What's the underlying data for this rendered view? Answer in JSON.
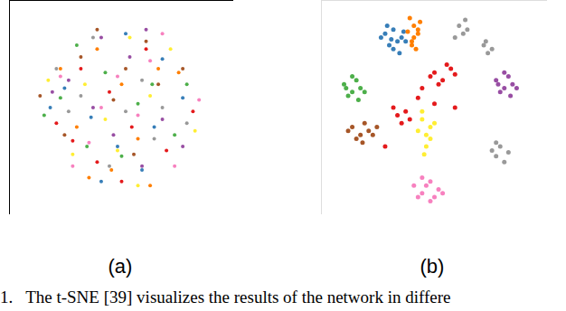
{
  "chart_data": [
    {
      "type": "scatter",
      "title": "(a)",
      "marker": "circle",
      "tick_labels": false,
      "xlim": [
        -5,
        105
      ],
      "ylim": [
        -5,
        105
      ],
      "series": [
        {
          "color": "#e41a1c",
          "x": [
            30,
            55,
            72,
            44,
            18,
            62,
            38,
            85,
            50,
            26
          ],
          "y": [
            70,
            40,
            28,
            58,
            42,
            80,
            22,
            48,
            12,
            33
          ]
        },
        {
          "color": "#377eb8",
          "x": [
            22,
            48,
            70,
            35,
            60,
            15,
            80,
            52,
            40,
            66
          ],
          "y": [
            60,
            30,
            75,
            45,
            18,
            50,
            55,
            88,
            12,
            40
          ]
        },
        {
          "color": "#4daf4a",
          "x": [
            20,
            42,
            58,
            76,
            33,
            65,
            50,
            12,
            82,
            28
          ],
          "y": [
            55,
            68,
            52,
            36,
            30,
            62,
            25,
            46,
            62,
            82
          ]
        },
        {
          "color": "#984ea3",
          "x": [
            36,
            54,
            70,
            24,
            46,
            80,
            60,
            16,
            40,
            62
          ],
          "y": [
            50,
            76,
            44,
            64,
            36,
            30,
            20,
            58,
            86,
            90
          ]
        },
        {
          "color": "#ff7f00",
          "x": [
            28,
            50,
            68,
            38,
            58,
            78,
            20,
            45,
            64,
            34
          ],
          "y": [
            40,
            62,
            70,
            80,
            34,
            68,
            70,
            18,
            10,
            14
          ]
        },
        {
          "color": "#ffee33",
          "x": [
            42,
            64,
            26,
            54,
            74,
            32,
            48,
            86,
            14,
            58
          ],
          "y": [
            44,
            56,
            26,
            86,
            80,
            62,
            28,
            38,
            64,
            10
          ]
        },
        {
          "color": "#a65628",
          "x": [
            46,
            30,
            68,
            56,
            22,
            80,
            38,
            62,
            10,
            52
          ],
          "y": [
            54,
            76,
            62,
            26,
            36,
            70,
            90,
            84,
            56,
            70
          ]
        },
        {
          "color": "#f781bf",
          "x": [
            34,
            58,
            76,
            48,
            20,
            64,
            40,
            88,
            26,
            70
          ],
          "y": [
            32,
            46,
            20,
            66,
            66,
            74,
            50,
            54,
            20,
            88
          ]
        },
        {
          "color": "#999999",
          "x": [
            52,
            36,
            70,
            24,
            60,
            44,
            82,
            18,
            66,
            30
          ],
          "y": [
            48,
            86,
            50,
            48,
            64,
            20,
            42,
            70,
            34,
            56
          ]
        }
      ]
    },
    {
      "type": "scatter",
      "title": "(b)",
      "marker": "circle",
      "tick_labels": false,
      "xlim": [
        -5,
        105
      ],
      "ylim": [
        -5,
        105
      ],
      "series": [
        {
          "color": "#377eb8",
          "x": [
            26,
            30,
            34,
            28,
            32,
            24,
            36,
            30,
            27,
            33,
            29,
            35
          ],
          "y": [
            88,
            90,
            86,
            82,
            84,
            86,
            84,
            80,
            92,
            78,
            85,
            89
          ]
        },
        {
          "color": "#ff7f00",
          "x": [
            38,
            40,
            42,
            39,
            41,
            43,
            37,
            40,
            42,
            39
          ],
          "y": [
            96,
            92,
            88,
            84,
            80,
            94,
            89,
            86,
            90,
            82
          ]
        },
        {
          "color": "#999999",
          "x": [
            62,
            64,
            66,
            60,
            65,
            74,
            76,
            78,
            75,
            80,
            78,
            82,
            80,
            84,
            86
          ],
          "y": [
            92,
            88,
            90,
            86,
            95,
            82,
            78,
            80,
            84,
            32,
            28,
            30,
            25,
            22,
            27
          ]
        },
        {
          "color": "#e41a1c",
          "x": [
            50,
            54,
            58,
            52,
            56,
            48,
            60,
            32,
            34,
            36,
            30,
            38,
            42,
            44,
            50,
            26,
            60
          ],
          "y": [
            68,
            64,
            70,
            62,
            72,
            66,
            67,
            46,
            42,
            48,
            50,
            44,
            55,
            60,
            52,
            30,
            50
          ]
        },
        {
          "color": "#984ea3",
          "x": [
            80,
            84,
            88,
            82,
            86,
            90,
            84,
            81,
            87
          ],
          "y": [
            64,
            60,
            62,
            58,
            66,
            60,
            68,
            62,
            56
          ]
        },
        {
          "color": "#4daf4a",
          "x": [
            6,
            10,
            14,
            8,
            12,
            16,
            10,
            7,
            13
          ],
          "y": [
            62,
            58,
            60,
            56,
            64,
            58,
            66,
            60,
            54
          ]
        },
        {
          "color": "#ffee33",
          "x": [
            44,
            48,
            46,
            42,
            50,
            46,
            44,
            48,
            45
          ],
          "y": [
            44,
            40,
            36,
            38,
            42,
            30,
            48,
            34,
            26
          ]
        },
        {
          "color": "#a65628",
          "x": [
            10,
            14,
            18,
            12,
            16,
            20,
            8,
            22,
            15
          ],
          "y": [
            40,
            36,
            38,
            34,
            42,
            36,
            38,
            40,
            32
          ]
        },
        {
          "color": "#f781bf",
          "x": [
            40,
            44,
            48,
            52,
            42,
            46,
            50,
            44,
            48,
            54
          ],
          "y": [
            10,
            6,
            12,
            8,
            4,
            10,
            4,
            14,
            2,
            6
          ]
        }
      ]
    }
  ],
  "caption": "1.   The t-SNE [39] visualizes the results of the network in differe"
}
